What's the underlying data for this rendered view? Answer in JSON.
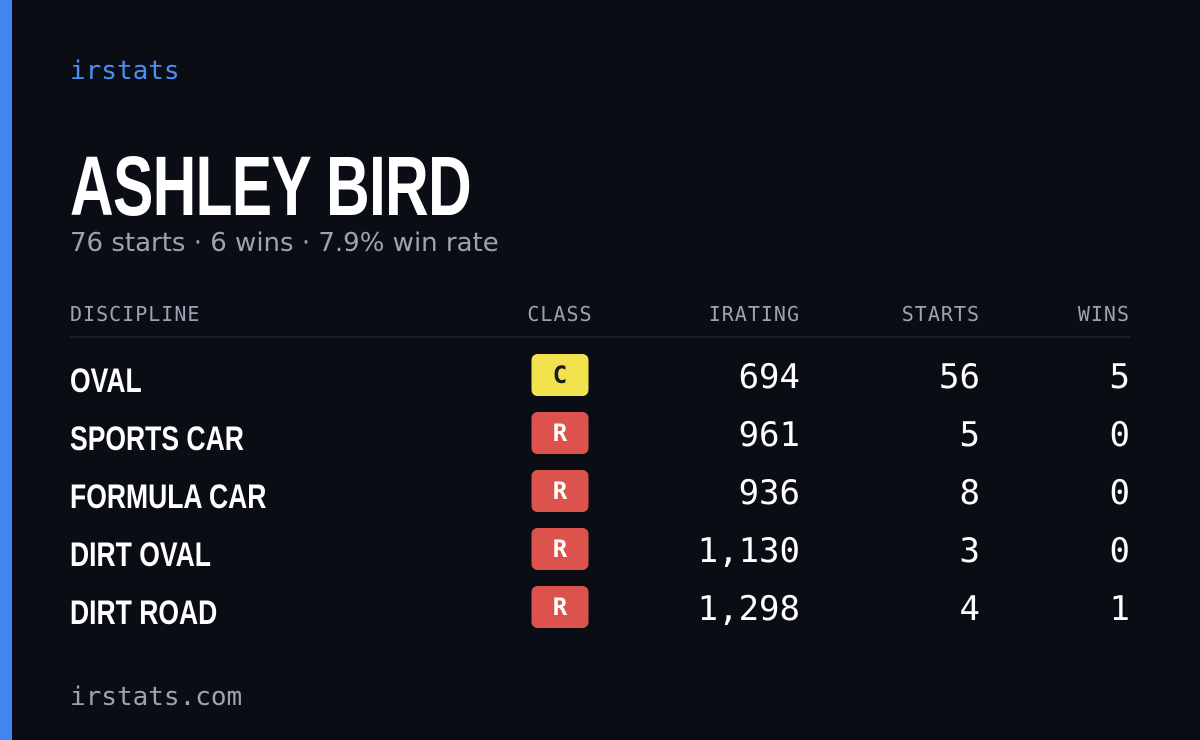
{
  "brand": "irstats",
  "name": "ASHLEY BIRD",
  "subtitle": "76 starts · 6 wins · 7.9% win rate",
  "table": {
    "headers": [
      "DISCIPLINE",
      "CLASS",
      "IRATING",
      "STARTS",
      "WINS"
    ],
    "rows": [
      {
        "discipline": "OVAL",
        "class": "C",
        "class_color": "#f2e24d",
        "irating": "694",
        "starts": "56",
        "wins": "5"
      },
      {
        "discipline": "SPORTS CAR",
        "class": "R",
        "class_color": "#dc524c",
        "irating": "961",
        "starts": "5",
        "wins": "0"
      },
      {
        "discipline": "FORMULA CAR",
        "class": "R",
        "class_color": "#dc524c",
        "irating": "936",
        "starts": "8",
        "wins": "0"
      },
      {
        "discipline": "DIRT OVAL",
        "class": "R",
        "class_color": "#dc524c",
        "irating": "1,130",
        "starts": "3",
        "wins": "0"
      },
      {
        "discipline": "DIRT ROAD",
        "class": "R",
        "class_color": "#dc524c",
        "irating": "1,298",
        "starts": "4",
        "wins": "1"
      }
    ]
  },
  "footer": "irstats.com"
}
